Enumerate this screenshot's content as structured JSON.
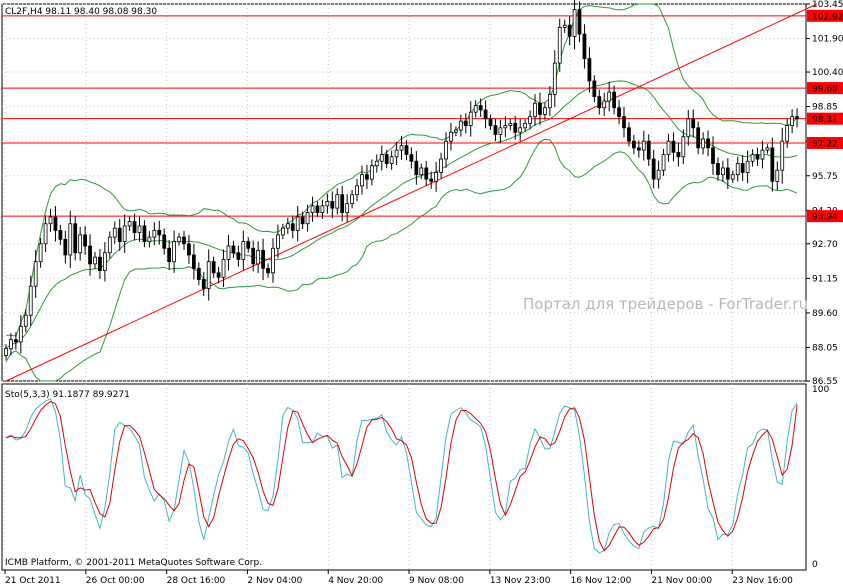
{
  "header": {
    "symbol_line": "CL2F,H4  98.11 98.40 98.08 98.30"
  },
  "watermark": "Портал для трейдеров - ForTrader.ru",
  "copyright": "ICMB Platform, © 2001-2011 MetaQuotes Software Corp.",
  "colors": {
    "candle": "#000000",
    "band": "#2f9a3a",
    "level": "#ff0000",
    "stoch_main": "#3fb8c0",
    "stoch_signal": "#e00000",
    "grid": "#c8c8c8"
  },
  "chart_data": [
    {
      "type": "candlestick",
      "title": "CL2F,H4  98.11 98.40 98.08 98.30",
      "ylim": [
        86.55,
        103.45
      ],
      "price_ticks": [
        "103.45",
        "101.90",
        "100.40",
        "98.85",
        "97.30",
        "95.75",
        "94.20",
        "92.70",
        "91.15",
        "89.60",
        "88.05",
        "86.55"
      ],
      "time_labels": [
        "21 Oct 2011",
        "26 Oct 00:00",
        "28 Oct 16:00",
        "2 Nov 04:00",
        "4 Nov 20:00",
        "9 Nov 08:00",
        "13 Nov 23:00",
        "16 Nov 12:00",
        "21 Nov 00:00",
        "23 Nov 16:00"
      ],
      "horizontal_levels": [
        {
          "label": "102.92",
          "value": 102.92
        },
        {
          "label": "99.68",
          "value": 99.68
        },
        {
          "label": "98.31",
          "value": 98.31
        },
        {
          "label": "97.22",
          "value": 97.22
        },
        {
          "label": "93.94",
          "value": 93.94
        }
      ],
      "trendline": {
        "from": [
          0,
          86.55
        ],
        "to": [
          164,
          103.45
        ]
      },
      "closes": [
        88.0,
        88.4,
        88.3,
        89.0,
        89.5,
        90.8,
        91.9,
        92.7,
        93.6,
        93.9,
        93.3,
        92.9,
        92.2,
        93.6,
        92.3,
        93.1,
        92.6,
        91.8,
        92.1,
        91.5,
        92.3,
        93.0,
        93.4,
        92.8,
        93.5,
        93.7,
        93.2,
        93.5,
        92.8,
        93.0,
        93.3,
        93.1,
        92.5,
        91.9,
        92.8,
        93.0,
        92.7,
        92.2,
        91.6,
        91.1,
        90.7,
        91.9,
        91.4,
        91.2,
        92.0,
        92.6,
        92.3,
        92.0,
        92.8,
        92.5,
        91.8,
        92.4,
        91.6,
        91.4,
        92.5,
        93.1,
        93.4,
        93.6,
        93.3,
        93.9,
        93.6,
        94.1,
        94.4,
        94.1,
        94.4,
        94.6,
        94.3,
        94.9,
        94.1,
        94.5,
        94.9,
        95.3,
        95.8,
        95.6,
        96.2,
        96.4,
        96.7,
        96.3,
        96.6,
        96.9,
        97.1,
        96.7,
        96.4,
        95.8,
        96.1,
        95.6,
        95.5,
        95.9,
        96.5,
        97.3,
        97.7,
        97.8,
        98.2,
        98.0,
        98.6,
        98.9,
        98.7,
        98.3,
        98.0,
        97.6,
        97.9,
        98.0,
        98.1,
        97.7,
        97.9,
        98.1,
        98.4,
        99.0,
        98.5,
        98.8,
        99.4,
        100.8,
        102.4,
        102.5,
        102.0,
        103.2,
        102.1,
        101.0,
        100.0,
        99.3,
        98.8,
        99.1,
        99.5,
        98.8,
        98.4,
        97.9,
        97.3,
        97.0,
        96.9,
        97.3,
        96.5,
        95.6,
        96.0,
        96.7,
        97.3,
        96.8,
        96.6,
        97.5,
        98.3,
        97.9,
        97.0,
        97.4,
        97.0,
        96.3,
        95.8,
        96.1,
        95.6,
        95.8,
        96.3,
        95.9,
        96.4,
        96.7,
        96.5,
        96.9,
        97.0,
        95.5,
        96.0,
        97.3,
        98.0,
        98.4,
        98.3
      ],
      "bollinger_bands": {
        "period": 20,
        "deviations": 2
      },
      "stochastic": {
        "label": "Sto(5,3,3) 91.1877 89.9271",
        "k_value": 91.1877,
        "d_value": 89.9271,
        "ylim": [
          0,
          100
        ],
        "scale_labels": [
          "100",
          "0"
        ]
      }
    }
  ]
}
